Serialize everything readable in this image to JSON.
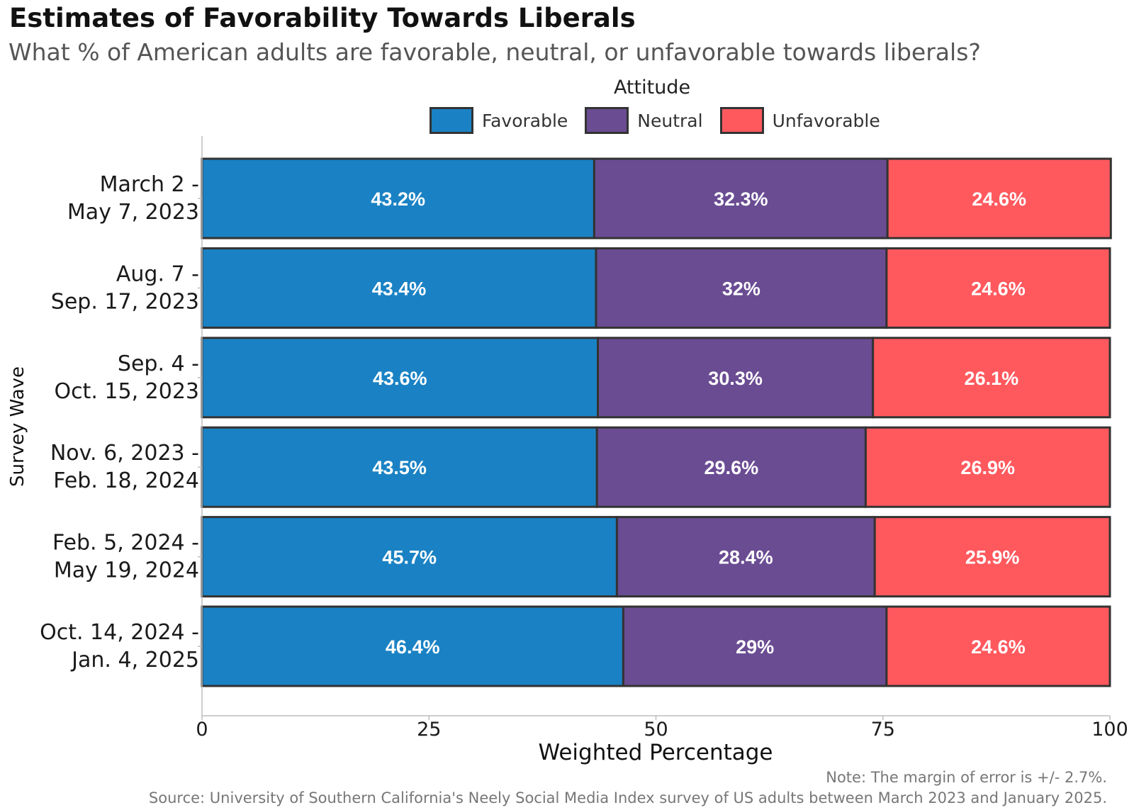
{
  "chart_data": {
    "type": "bar",
    "orientation": "horizontal",
    "stacked": true,
    "title": "Estimates of Favorability Towards Liberals",
    "subtitle": "What % of American adults are favorable, neutral, or unfavorable towards liberals?",
    "xlabel": "Weighted Percentage",
    "ylabel": "Survey Wave",
    "xlim": [
      0,
      100
    ],
    "xticks": [
      "0",
      "25",
      "50",
      "75",
      "100"
    ],
    "legend_title": "Attitude",
    "legend_position": "top",
    "categories": [
      [
        "March 2 -",
        "May 7, 2023"
      ],
      [
        "Aug. 7 -",
        "Sep. 17, 2023"
      ],
      [
        "Sep. 4 -",
        "Oct. 15, 2023"
      ],
      [
        "Nov. 6, 2023 -",
        "Feb. 18, 2024"
      ],
      [
        "Feb. 5, 2024 -",
        "May 19, 2024"
      ],
      [
        "Oct. 14, 2024 -",
        "Jan. 4, 2025"
      ]
    ],
    "series": [
      {
        "name": "Favorable",
        "color": "#1a82c4",
        "values": [
          43.2,
          43.4,
          43.6,
          43.5,
          45.7,
          46.4
        ],
        "labels": [
          "43.2%",
          "43.4%",
          "43.6%",
          "43.5%",
          "45.7%",
          "46.4%"
        ]
      },
      {
        "name": "Neutral",
        "color": "#6a4c93",
        "values": [
          32.3,
          32,
          30.3,
          29.6,
          28.4,
          29
        ],
        "labels": [
          "32.3%",
          "32%",
          "30.3%",
          "29.6%",
          "28.4%",
          "29%"
        ]
      },
      {
        "name": "Unfavorable",
        "color": "#ff595e",
        "values": [
          24.6,
          24.6,
          26.1,
          26.9,
          25.9,
          24.6
        ],
        "labels": [
          "24.6%",
          "24.6%",
          "26.1%",
          "26.9%",
          "25.9%",
          "24.6%"
        ]
      }
    ],
    "grid": false
  },
  "footer": {
    "note": "Note: The margin of error is +/- 2.7%.",
    "source": "Source: University of Southern California's Neely Social Media Index survey of US adults between March 2023 and January 2025."
  }
}
